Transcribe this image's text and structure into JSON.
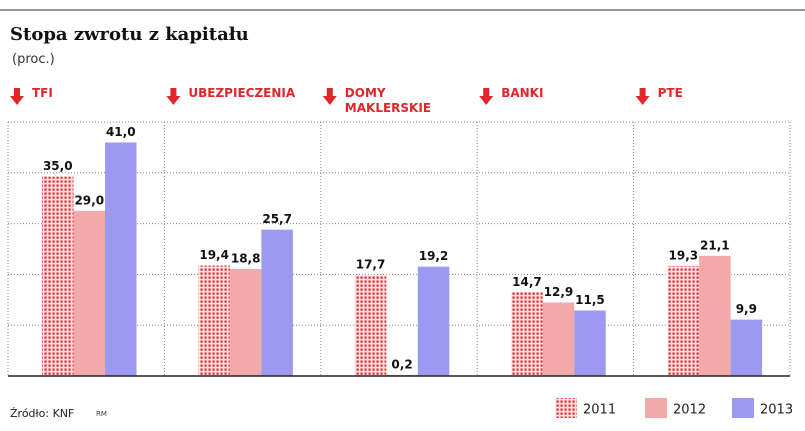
{
  "chart_data": {
    "type": "bar",
    "title": "Stopa zwrotu z kapitału",
    "subtitle": "(proc.)",
    "categories": [
      "TFI",
      "UBEZPIECZENIA",
      "DOMY\nMAKLERSKIE",
      "BANKI",
      "PTE"
    ],
    "series": [
      {
        "name": "2011",
        "color": "#e0262b",
        "values": [
          35.0,
          19.4,
          17.7,
          14.7,
          19.3
        ],
        "value_labels": [
          "35,0",
          "19,4",
          "17,7",
          "14,7",
          "19,3"
        ]
      },
      {
        "name": "2012",
        "color": "#f2a9a9",
        "values": [
          29.0,
          18.8,
          0.2,
          12.9,
          21.1
        ],
        "value_labels": [
          "29,0",
          "18,8",
          "0,2",
          "12,9",
          "21,1"
        ]
      },
      {
        "name": "2013",
        "color": "#9b99f0",
        "values": [
          41.0,
          25.7,
          19.2,
          11.5,
          9.9
        ],
        "value_labels": [
          "41,0",
          "25,7",
          "19,2",
          "11,5",
          "9,9"
        ]
      }
    ],
    "ylim": [
      0,
      44.6
    ],
    "source": "Źródło: KNF",
    "credit": "RM"
  }
}
